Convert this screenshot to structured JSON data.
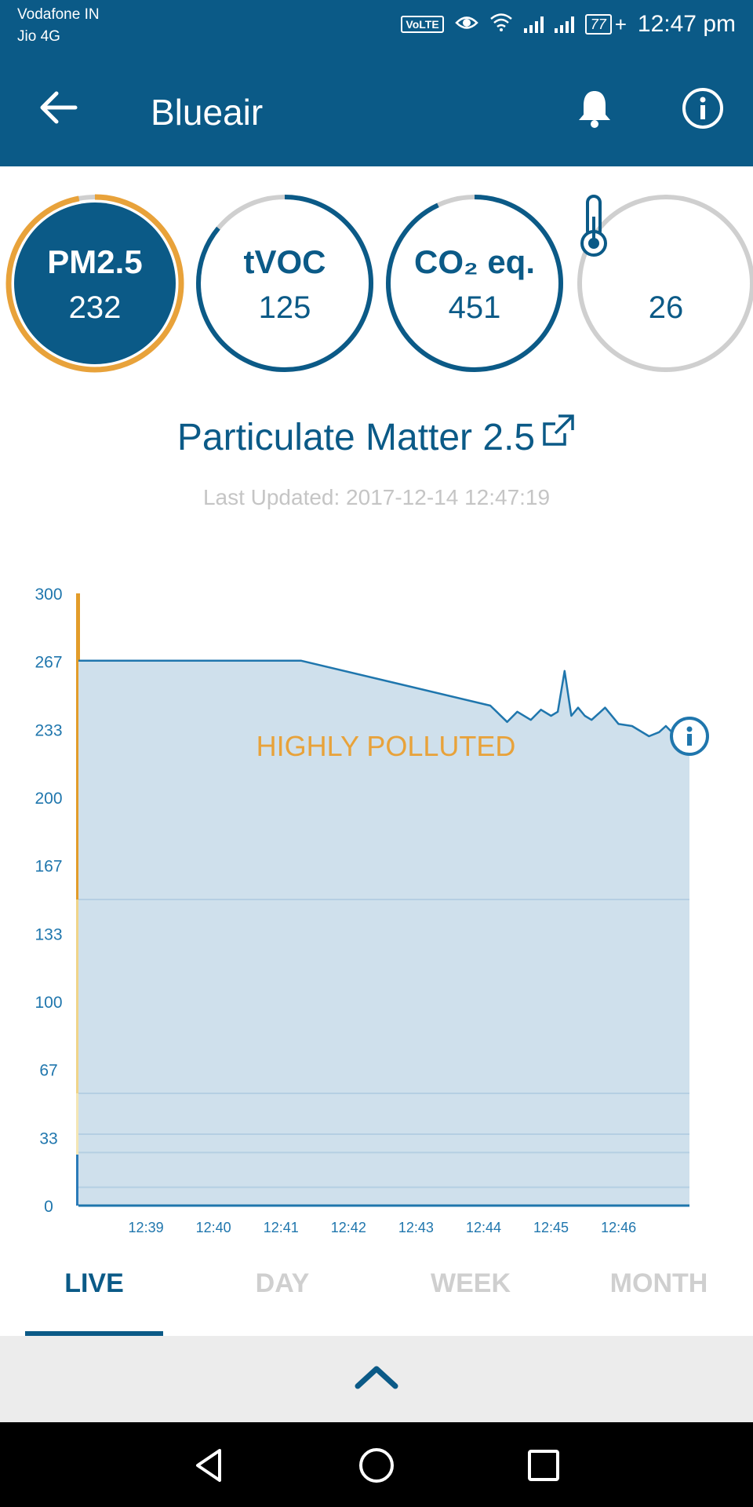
{
  "status_bar": {
    "carrier_1": "Vodafone IN",
    "carrier_2": "Jio 4G",
    "volte": "VoLTE",
    "battery": "77",
    "time": "12:47 pm"
  },
  "app_bar": {
    "title": "Blueair",
    "icons": [
      "back-arrow-icon",
      "bell-icon",
      "info-icon"
    ]
  },
  "metrics": [
    {
      "label": "PM2.5",
      "value": "232",
      "active": true,
      "ring_fraction": 0.97,
      "ring_color": "#e8a23a"
    },
    {
      "label": "tVOC",
      "value": "125",
      "active": false,
      "ring_fraction": 0.86,
      "ring_color": "#0b5a87"
    },
    {
      "label": "CO₂ eq.",
      "value": "451",
      "active": false,
      "ring_fraction": 0.93,
      "ring_color": "#0b5a87"
    },
    {
      "label": "",
      "icon": "thermometer-icon",
      "value": "26",
      "active": false,
      "ring_fraction": 0.0,
      "ring_color": "#cfcfcf"
    }
  ],
  "section": {
    "title": "Particulate Matter 2.5",
    "last_updated": "Last Updated: 2017-12-14 12:47:19"
  },
  "chart_data": {
    "type": "area",
    "annotation": "HIGHLY POLLUTED",
    "y_ticks": [
      "300",
      "267",
      "233",
      "200",
      "167",
      "133",
      "100",
      "67",
      "33",
      "0"
    ],
    "ylim": [
      0,
      300
    ],
    "x_ticks": [
      "12:39",
      "12:40",
      "12:41",
      "12:42",
      "12:43",
      "12:44",
      "12:45",
      "12:46"
    ],
    "x_range_minutes": [
      38.0,
      47.05
    ],
    "series": [
      {
        "x_minutes": [
          38.0,
          41.3,
          44.1,
          44.35,
          44.5,
          44.7,
          44.85,
          45.0,
          45.1,
          45.2,
          45.3,
          45.4,
          45.5,
          45.6,
          45.8,
          46.0,
          46.2,
          46.45,
          46.6,
          46.7,
          46.85,
          47.05
        ],
        "values": [
          267,
          267,
          245,
          237,
          242,
          238,
          243,
          240,
          242,
          262,
          240,
          244,
          240,
          238,
          244,
          236,
          235,
          230,
          232,
          235,
          230,
          230
        ]
      }
    ],
    "bands": [
      {
        "from": 0,
        "to": 25,
        "color": "#2a7ab8"
      },
      {
        "from": 25,
        "to": 55,
        "color": "#f4e6b5"
      },
      {
        "from": 55,
        "to": 150,
        "color": "#f0d489"
      },
      {
        "from": 150,
        "to": 300,
        "color": "#e29c2a"
      }
    ],
    "band_lines": [
      9,
      26,
      35,
      55,
      150
    ]
  },
  "tabs": [
    "LIVE",
    "DAY",
    "WEEK",
    "MONTH"
  ],
  "selected_tab": "LIVE",
  "nav_icons": [
    "back-triangle-icon",
    "home-circle-icon",
    "recents-square-icon"
  ],
  "colors": {
    "primary": "#0b5a87",
    "accent_orange": "#e8a23a",
    "area_fill": "#cfe0ec",
    "line": "#1f76ad"
  }
}
